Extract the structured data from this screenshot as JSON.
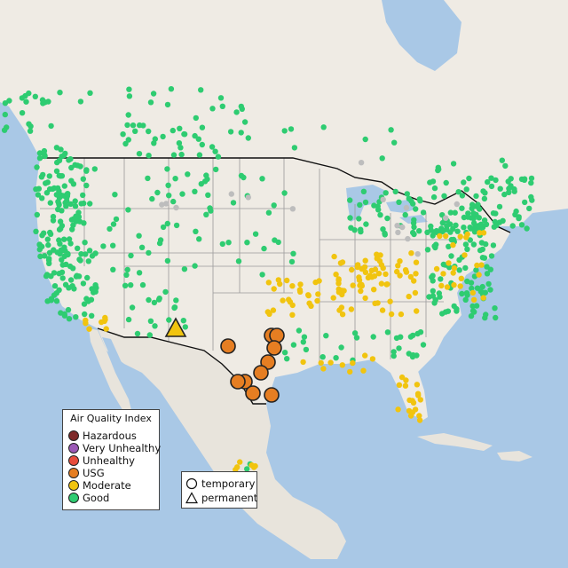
{
  "map": {
    "title": "",
    "region": "United States, southern Canada, northern Mexico and Caribbean",
    "colors": {
      "water": "#a9c8e6",
      "land": "#efebe4",
      "mexico_land": "#e8e4dc",
      "country_border": "#111111",
      "state_border": "#9a9a9a"
    }
  },
  "legend": {
    "title": "Air Quality Index",
    "items": [
      {
        "label": "Hazardous",
        "color": "#7e2a2a"
      },
      {
        "label": "Very Unhealthy",
        "color": "#9b59b6"
      },
      {
        "label": "Unhealthy",
        "color": "#e74c3c"
      },
      {
        "label": "USG",
        "color": "#e67e22"
      },
      {
        "label": "Moderate",
        "color": "#f1c40f"
      },
      {
        "label": "Good",
        "color": "#2ecc71"
      }
    ]
  },
  "shape_legend": {
    "items": [
      {
        "label": "temporary",
        "shape": "circle-icon"
      },
      {
        "label": "permanent",
        "shape": "triangle-icon"
      }
    ]
  },
  "markers": {
    "usg_temporary": [
      {
        "name": "west-texas-monitor"
      },
      {
        "name": "north-texas-monitor-a"
      },
      {
        "name": "north-texas-monitor-b"
      },
      {
        "name": "central-texas-monitor-a"
      },
      {
        "name": "central-texas-monitor-b"
      },
      {
        "name": "central-texas-monitor-c"
      },
      {
        "name": "south-texas-monitor-a"
      },
      {
        "name": "south-texas-monitor-b"
      },
      {
        "name": "south-texas-monitor-c"
      },
      {
        "name": "south-texas-monitor-d"
      }
    ],
    "moderate_permanent": [
      {
        "name": "new-mexico-monitor"
      }
    ]
  }
}
